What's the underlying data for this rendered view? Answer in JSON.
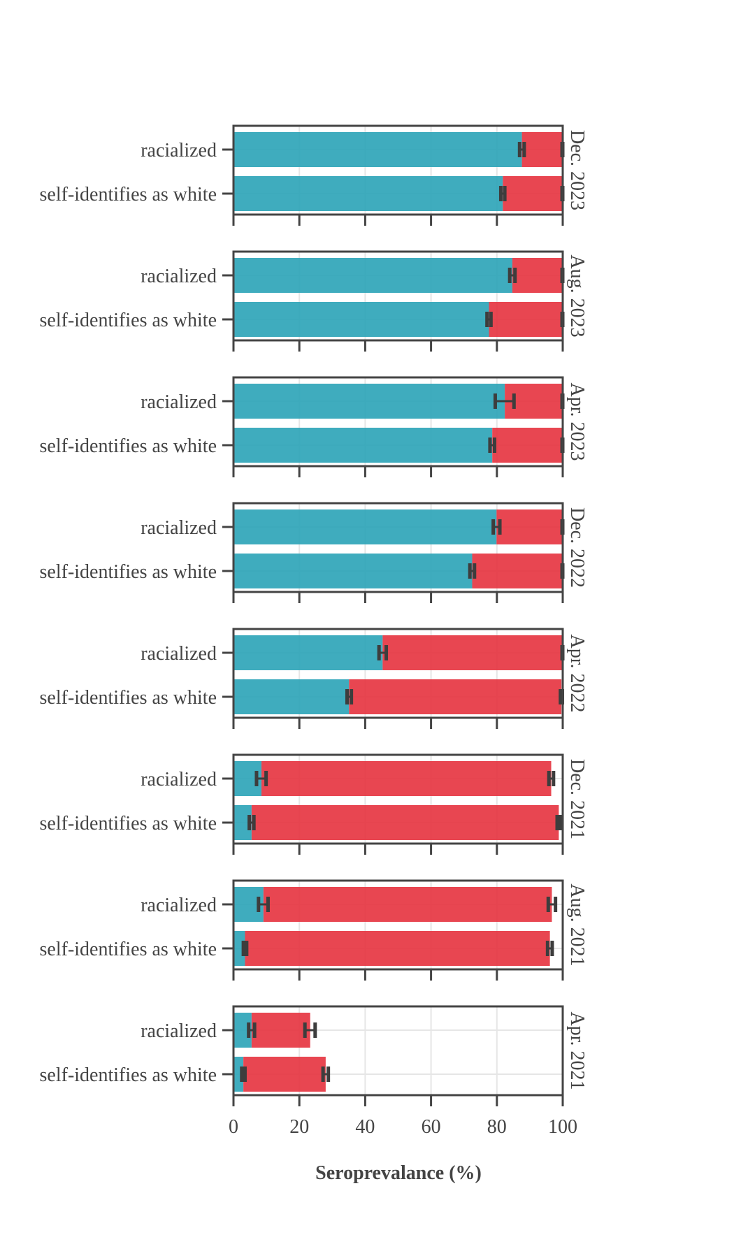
{
  "chart_data": {
    "type": "bar",
    "stacked": true,
    "orientation": "horizontal",
    "xlabel": "Seroprevalance (%)",
    "xlim": [
      0,
      100
    ],
    "xticks": [
      0,
      20,
      40,
      60,
      80,
      100
    ],
    "grid": true,
    "colors": {
      "series_1": "#2aa3b7",
      "series_2": "#e5323e",
      "error_bar": "#3d3d3d"
    },
    "categories": [
      "racialized",
      "self-identifies as white"
    ],
    "panels": [
      {
        "label": "Dec. 2023",
        "rows": [
          {
            "category": "racialized",
            "segment_1": 87.6,
            "segment_2_end": 100,
            "err_1": [
              86.9,
              88.3
            ],
            "err_2": [
              99.8,
              100
            ]
          },
          {
            "category": "self-identifies as white",
            "segment_1": 81.8,
            "segment_2_end": 100,
            "err_1": [
              81.2,
              82.4
            ],
            "err_2": [
              99.8,
              100
            ]
          }
        ]
      },
      {
        "label": "Aug. 2023",
        "rows": [
          {
            "category": "racialized",
            "segment_1": 84.7,
            "segment_2_end": 100,
            "err_1": [
              83.9,
              85.5
            ],
            "err_2": [
              99.8,
              100
            ]
          },
          {
            "category": "self-identifies as white",
            "segment_1": 77.6,
            "segment_2_end": 100,
            "err_1": [
              77.0,
              78.2
            ],
            "err_2": [
              99.8,
              100
            ]
          }
        ]
      },
      {
        "label": "Apr. 2023",
        "rows": [
          {
            "category": "racialized",
            "segment_1": 82.4,
            "segment_2_end": 100,
            "err_1": [
              79.5,
              85.2
            ],
            "err_2": [
              99.8,
              100
            ]
          },
          {
            "category": "self-identifies as white",
            "segment_1": 78.6,
            "segment_2_end": 100,
            "err_1": [
              77.9,
              79.3
            ],
            "err_2": [
              99.8,
              100
            ]
          }
        ]
      },
      {
        "label": "Dec. 2022",
        "rows": [
          {
            "category": "racialized",
            "segment_1": 79.9,
            "segment_2_end": 100,
            "err_1": [
              78.9,
              80.9
            ],
            "err_2": [
              99.8,
              100
            ]
          },
          {
            "category": "self-identifies as white",
            "segment_1": 72.5,
            "segment_2_end": 100,
            "err_1": [
              71.8,
              73.2
            ],
            "err_2": [
              99.8,
              100
            ]
          }
        ]
      },
      {
        "label": "Apr. 2022",
        "rows": [
          {
            "category": "racialized",
            "segment_1": 45.3,
            "segment_2_end": 100,
            "err_1": [
              44.2,
              46.4
            ],
            "err_2": [
              99.8,
              100
            ]
          },
          {
            "category": "self-identifies as white",
            "segment_1": 35.1,
            "segment_2_end": 99.6,
            "err_1": [
              34.5,
              35.8
            ],
            "err_2": [
              99.3,
              99.9
            ]
          }
        ]
      },
      {
        "label": "Dec. 2021",
        "rows": [
          {
            "category": "racialized",
            "segment_1": 8.5,
            "segment_2_end": 96.5,
            "err_1": [
              7.0,
              9.9
            ],
            "err_2": [
              95.8,
              97.2
            ]
          },
          {
            "category": "self-identifies as white",
            "segment_1": 5.5,
            "segment_2_end": 98.8,
            "err_1": [
              4.8,
              6.2
            ],
            "err_2": [
              98.3,
              99.3
            ]
          }
        ]
      },
      {
        "label": "Aug. 2021",
        "rows": [
          {
            "category": "racialized",
            "segment_1": 9.1,
            "segment_2_end": 96.7,
            "err_1": [
              7.6,
              10.5
            ],
            "err_2": [
              95.6,
              97.8
            ]
          },
          {
            "category": "self-identifies as white",
            "segment_1": 3.5,
            "segment_2_end": 96.1,
            "err_1": [
              3.0,
              4.0
            ],
            "err_2": [
              95.4,
              96.8
            ]
          }
        ]
      },
      {
        "label": "Apr. 2021",
        "rows": [
          {
            "category": "racialized",
            "segment_1": 5.5,
            "segment_2_end": 23.3,
            "err_1": [
              4.6,
              6.4
            ],
            "err_2": [
              21.7,
              24.8
            ]
          },
          {
            "category": "self-identifies as white",
            "segment_1": 3.0,
            "segment_2_end": 28.0,
            "err_1": [
              2.5,
              3.5
            ],
            "err_2": [
              27.2,
              28.8
            ]
          }
        ]
      }
    ]
  }
}
